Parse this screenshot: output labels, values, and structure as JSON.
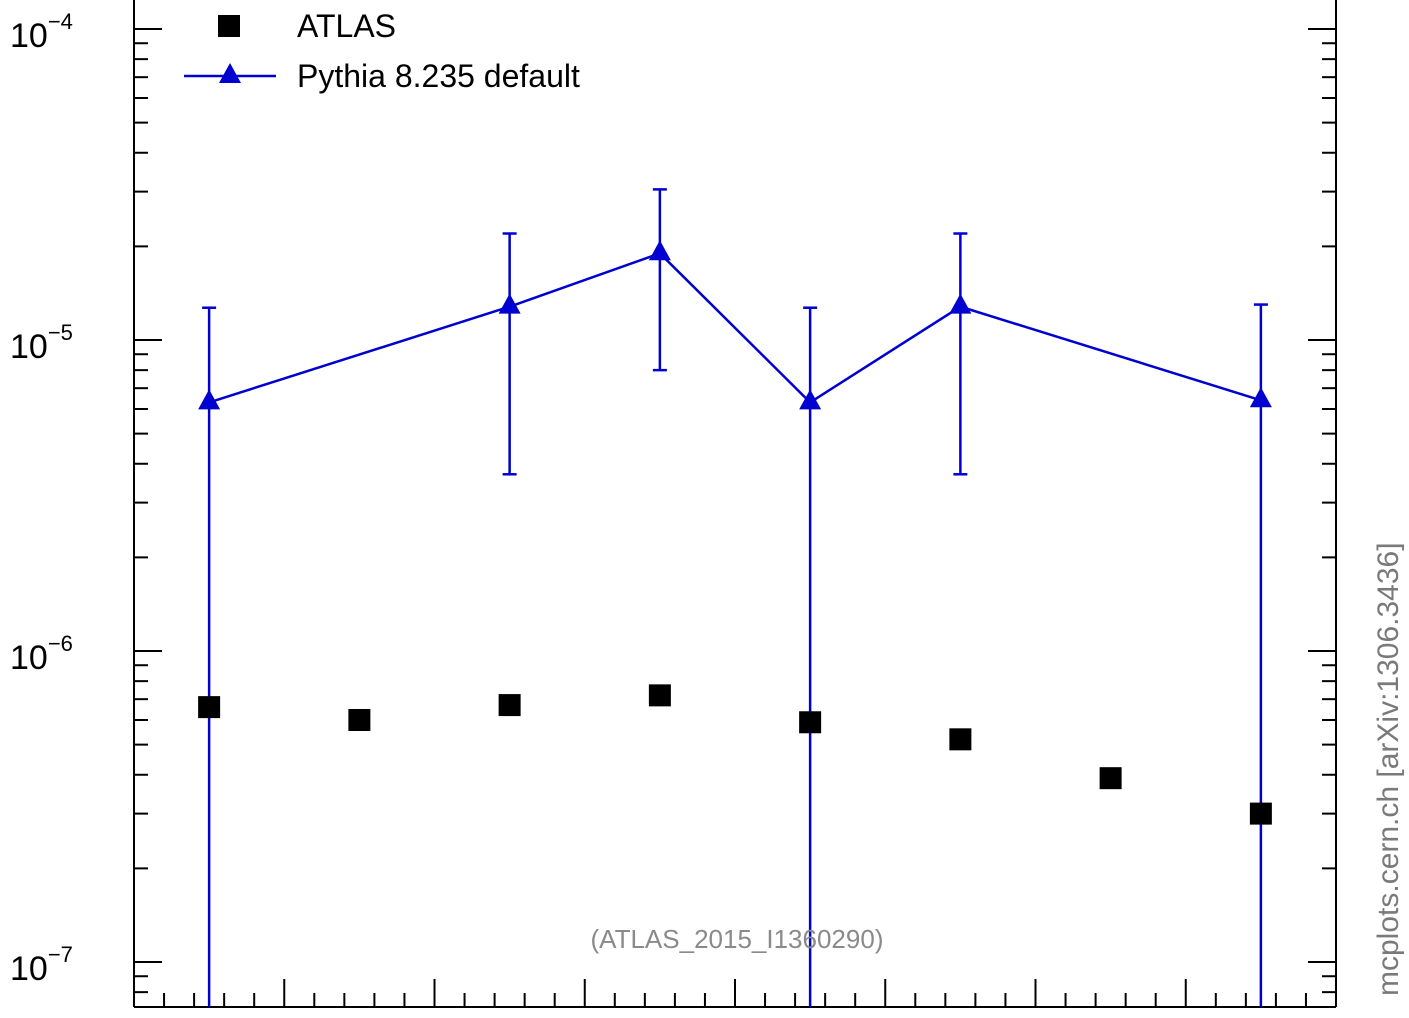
{
  "chart_data": {
    "type": "scatter",
    "y_scale": "log",
    "ylim": [
      7e-08,
      0.00013
    ],
    "xlim": [
      0,
      8
    ],
    "y_tick_labels": [
      {
        "value": 0.0001,
        "base": "10",
        "exp": "−4"
      },
      {
        "value": 1e-05,
        "base": "10",
        "exp": "−5"
      },
      {
        "value": 1e-06,
        "base": "10",
        "exp": "−6"
      },
      {
        "value": 1e-07,
        "base": "10",
        "exp": "−7"
      }
    ],
    "series": [
      {
        "name": "ATLAS",
        "marker": "square",
        "color": "#000000",
        "x": [
          0.5,
          1.5,
          2.5,
          3.5,
          4.5,
          5.5,
          6.5,
          7.5
        ],
        "y": [
          6.6e-07,
          6e-07,
          6.7e-07,
          7.2e-07,
          5.9e-07,
          5.2e-07,
          3.9e-07,
          3e-07
        ]
      },
      {
        "name": "Pythia 8.235 default",
        "marker": "triangle",
        "line": true,
        "color": "#0000d0",
        "x": [
          0.5,
          2.5,
          3.5,
          4.5,
          5.5,
          7.5
        ],
        "y": [
          6.3e-06,
          1.28e-05,
          1.9e-05,
          6.3e-06,
          1.28e-05,
          6.4e-06
        ],
        "y_err_low": [
          1e-08,
          3.7e-06,
          8e-06,
          1e-08,
          3.7e-06,
          1e-08
        ],
        "y_err_high": [
          1.27e-05,
          2.2e-05,
          3.05e-05,
          1.27e-05,
          2.2e-05,
          1.3e-05
        ]
      }
    ],
    "legend": {
      "position": "top-left"
    },
    "annotation": "(ATLAS_2015_I1360290)",
    "side_label": "mcplots.cern.ch [arXiv:1306.3436]",
    "grid": false
  }
}
